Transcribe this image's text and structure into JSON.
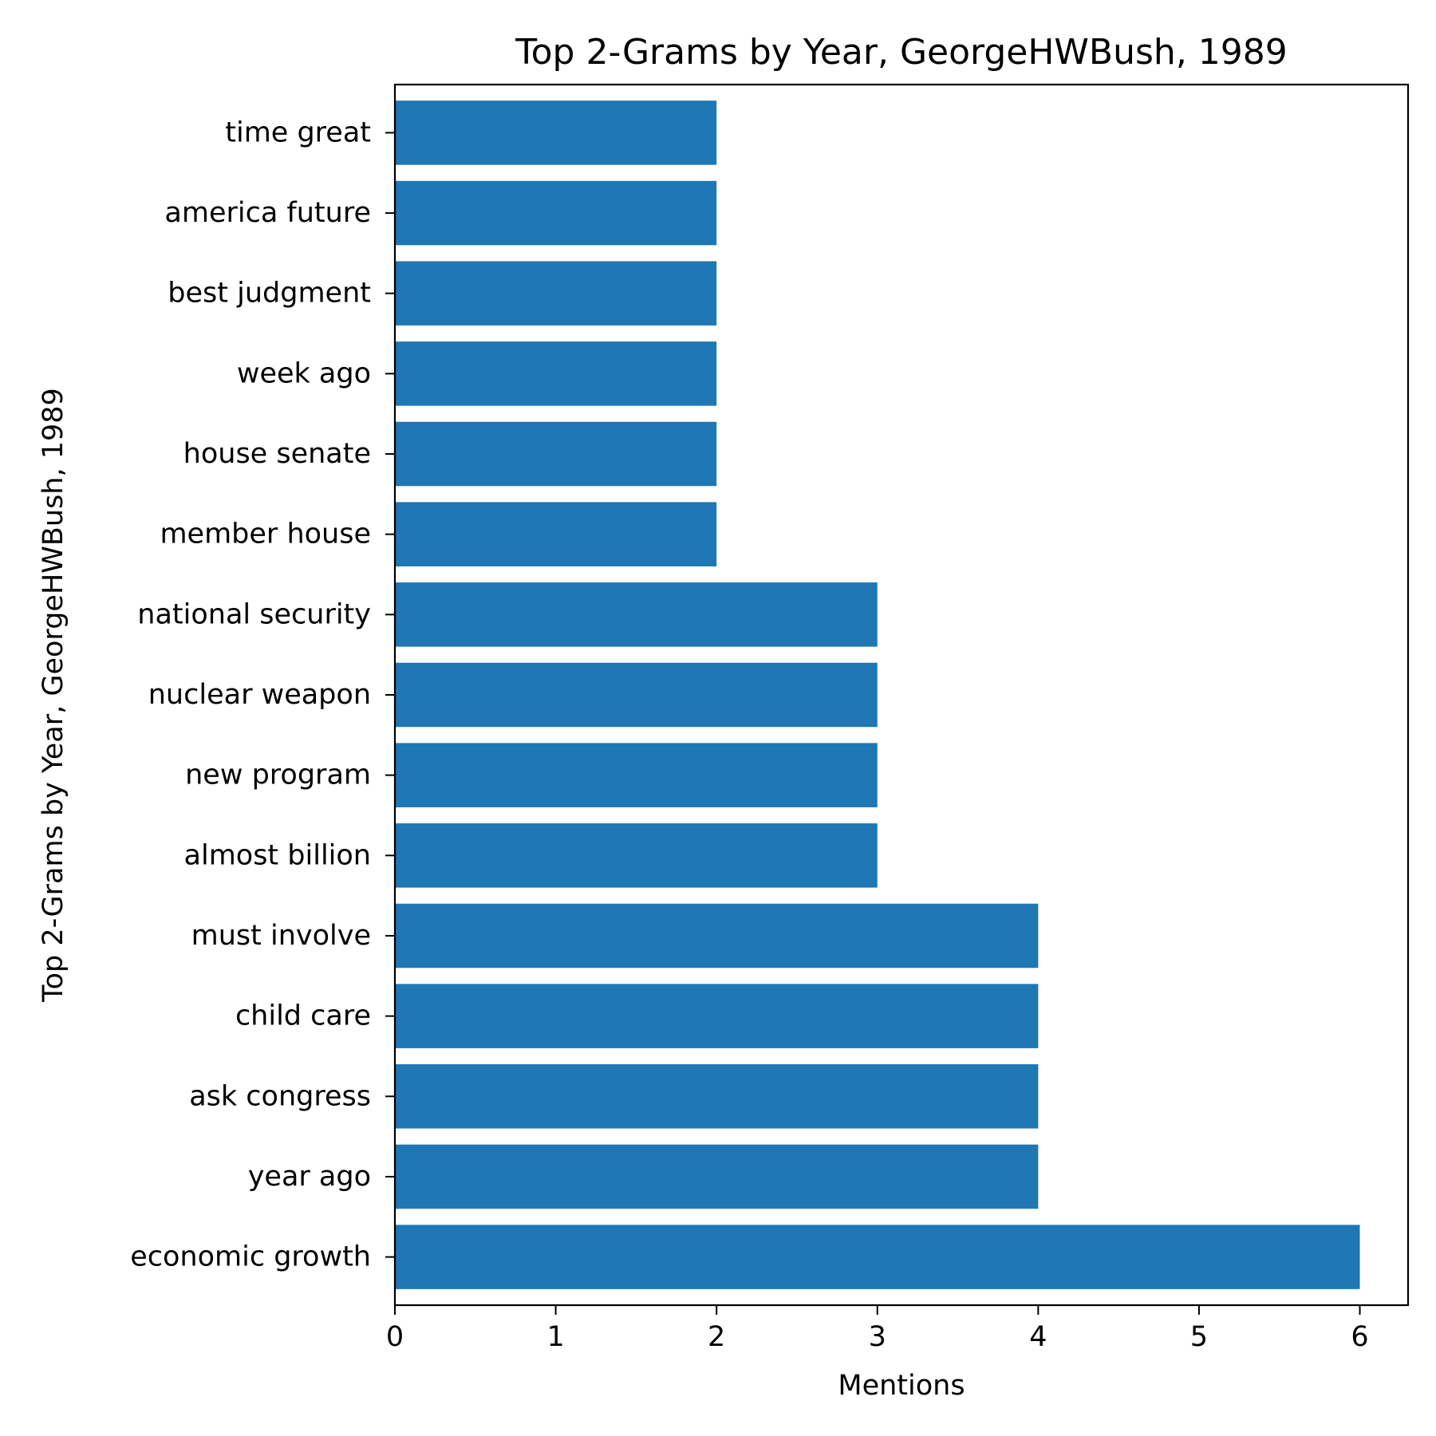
{
  "chart_data": {
    "type": "bar",
    "orientation": "horizontal",
    "title": "Top 2-Grams by Year, GeorgeHWBush, 1989",
    "xlabel": "Mentions",
    "ylabel": "Top 2-Grams by Year, GeorgeHWBush, 1989",
    "categories": [
      "economic growth",
      "year ago",
      "ask congress",
      "child care",
      "must involve",
      "almost billion",
      "new program",
      "nuclear weapon",
      "national security",
      "member house",
      "house senate",
      "week ago",
      "best judgment",
      "america future",
      "time great"
    ],
    "values": [
      6,
      4,
      4,
      4,
      4,
      3,
      3,
      3,
      3,
      2,
      2,
      2,
      2,
      2,
      2
    ],
    "xlim": [
      0,
      6.3
    ],
    "xticks": [
      0,
      1,
      2,
      3,
      4,
      5,
      6
    ],
    "bar_color": "#1f77b4",
    "grid": false,
    "legend": "none"
  }
}
